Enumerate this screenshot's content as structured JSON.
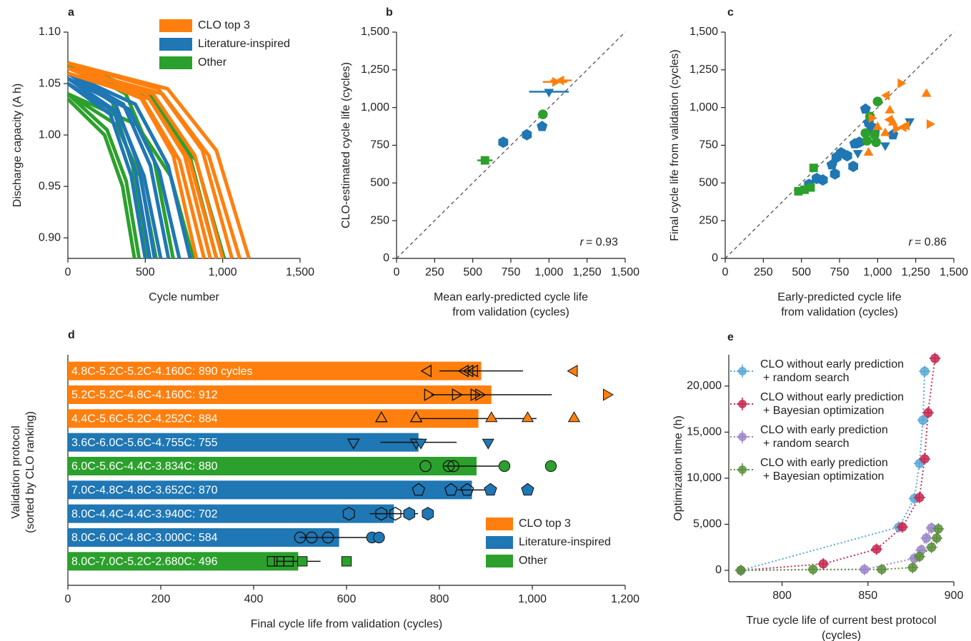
{
  "chart_data": [
    {
      "type": "line",
      "panel": "a",
      "ylabel": "Discharge capacity (A h)",
      "xlabel": "Cycle number",
      "xlim": [
        0,
        1500
      ],
      "ylim": [
        0.88,
        1.1
      ],
      "xticks": [
        0,
        500,
        {
          "value": 1000,
          "label": "1,000"
        },
        {
          "value": 1500,
          "label": "1,500"
        }
      ],
      "yticks": [
        {
          "value": 0.9,
          "label": "0.90"
        },
        0.95,
        {
          "value": 1.0,
          "label": "1.00"
        },
        1.05,
        {
          "value": 1.1,
          "label": "1.10"
        }
      ],
      "legend": "upper right",
      "series": [
        {
          "name": "CLO top 3",
          "color": "#ff7f0e",
          "lines": [
            {
              "x": [
                0,
                457,
                681,
                830
              ],
              "values": [
                1.07,
                1.04,
                0.98,
                0.88
              ]
            },
            {
              "x": [
                0,
                484,
                722,
                880
              ],
              "values": [
                1.065,
                1.035,
                0.975,
                0.88
              ]
            },
            {
              "x": [
                0,
                506,
                754,
                920
              ],
              "values": [
                1.07,
                1.04,
                0.98,
                0.88
              ]
            },
            {
              "x": [
                0,
                528,
                787,
                960
              ],
              "values": [
                1.06,
                1.035,
                0.975,
                0.88
              ]
            },
            {
              "x": [
                0,
                550,
                820,
                1000
              ],
              "values": [
                1.065,
                1.04,
                0.98,
                0.88
              ]
            },
            {
              "x": [
                0,
                583,
                869,
                1060
              ],
              "values": [
                1.07,
                1.045,
                0.985,
                0.88
              ]
            },
            {
              "x": [
                0,
                611,
                910,
                1110
              ],
              "values": [
                1.065,
                1.04,
                0.98,
                0.88
              ]
            },
            {
              "x": [
                0,
                644,
                959,
                1170
              ],
              "values": [
                1.07,
                1.045,
                0.985,
                0.88
              ]
            }
          ]
        },
        {
          "name": "Literature-inspired",
          "color": "#1f77b4",
          "lines": [
            {
              "x": [
                0,
                275,
                410,
                500
              ],
              "values": [
                1.05,
                1.02,
                0.96,
                0.88
              ]
            },
            {
              "x": [
                0,
                292,
                435,
                530
              ],
              "values": [
                1.055,
                1.025,
                0.965,
                0.88
              ]
            },
            {
              "x": [
                0,
                308,
                459,
                560
              ],
              "values": [
                1.06,
                1.03,
                0.97,
                0.88
              ]
            },
            {
              "x": [
                0,
                330,
                492,
                600
              ],
              "values": [
                1.05,
                1.02,
                0.96,
                0.88
              ]
            },
            {
              "x": [
                0,
                358,
                533,
                650
              ],
              "values": [
                1.06,
                1.03,
                0.97,
                0.88
              ]
            },
            {
              "x": [
                0,
                396,
                590,
                720
              ],
              "values": [
                1.055,
                1.025,
                0.965,
                0.88
              ]
            },
            {
              "x": [
                0,
                435,
                648,
                790
              ],
              "values": [
                1.06,
                1.03,
                0.97,
                0.88
              ]
            }
          ]
        },
        {
          "name": "Other",
          "color": "#2ca02c",
          "lines": [
            {
              "x": [
                0,
                237,
                353,
                430
              ],
              "values": [
                1.035,
                1.0,
                0.95,
                0.88
              ]
            },
            {
              "x": [
                0,
                253,
                377,
                460
              ],
              "values": [
                1.04,
                1.005,
                0.955,
                0.88
              ]
            },
            {
              "x": [
                0,
                281,
                418,
                510
              ],
              "values": [
                1.07,
                1.035,
                0.97,
                0.88
              ]
            },
            {
              "x": [
                0,
                314,
                467,
                570
              ],
              "values": [
                1.04,
                1.01,
                0.96,
                0.88
              ]
            },
            {
              "x": [
                0,
                374,
                558,
                680
              ],
              "values": [
                1.07,
                1.04,
                0.975,
                0.88
              ]
            },
            {
              "x": [
                0,
                446,
                664,
                810
              ],
              "values": [
                1.04,
                1.01,
                0.96,
                0.88
              ]
            },
            {
              "x": [
                0,
                528,
                787,
                960
              ],
              "values": [
                1.07,
                1.04,
                0.98,
                0.88
              ]
            },
            {
              "x": [
                0,
                556,
                828,
                1010
              ],
              "values": [
                1.065,
                1.035,
                0.975,
                0.88
              ]
            }
          ]
        }
      ]
    },
    {
      "type": "scatter",
      "panel": "b",
      "ylabel": "CLO-estimated cycle life (cycles)",
      "xlabel": [
        "Mean early-predicted cycle life",
        "from validation (cycles)"
      ],
      "xlim": [
        0,
        1500
      ],
      "ylim": [
        0,
        1500
      ],
      "diagonal": true,
      "annotation": [
        "r",
        "= 0.93"
      ],
      "xticks": [
        0,
        250,
        500,
        750,
        {
          "value": 1000,
          "label": "1,000"
        },
        {
          "value": 1250,
          "label": "1,250"
        },
        {
          "value": 1500,
          "label": "1,500"
        }
      ],
      "yticks": [
        0,
        250,
        500,
        750,
        {
          "value": 1000,
          "label": "1,000"
        },
        {
          "value": 1250,
          "label": "1,250"
        },
        {
          "value": 1500,
          "label": "1,500"
        }
      ],
      "series": [
        {
          "color": "#ff7f0e",
          "x": [
            1040,
            1080
          ],
          "values": [
            1170,
            1180
          ],
          "xerr": [
            80,
            70
          ],
          "markers": [
            "triangle-right",
            "triangle-left"
          ]
        },
        {
          "color": "#1f77b4",
          "x": [
            1000,
            955,
            855,
            700
          ],
          "values": [
            1105,
            875,
            820,
            770
          ],
          "xerr": [
            130,
            25,
            30,
            30
          ],
          "markers": [
            "triangle-down",
            "pentagon",
            "hexagon",
            "hexagon"
          ]
        },
        {
          "color": "#2ca02c",
          "x": [
            960,
            580
          ],
          "values": [
            955,
            650
          ],
          "xerr": [
            15,
            50
          ],
          "markers": [
            "circle",
            "square"
          ]
        }
      ]
    },
    {
      "type": "scatter",
      "panel": "c",
      "ylabel": "Final cycle life from validation (cycles)",
      "xlabel": [
        "Early-predicted cycle life",
        "from validation (cycles)"
      ],
      "xlim": [
        0,
        1500
      ],
      "ylim": [
        0,
        1500
      ],
      "diagonal": true,
      "annotation": [
        "r",
        "= 0.86"
      ],
      "xticks": [
        0,
        250,
        500,
        750,
        {
          "value": 1000,
          "label": "1,000"
        },
        {
          "value": 1250,
          "label": "1,250"
        },
        {
          "value": 1500,
          "label": "1,500"
        }
      ],
      "yticks": [
        0,
        250,
        500,
        750,
        {
          "value": 1000,
          "label": "1,000"
        },
        {
          "value": 1250,
          "label": "1,250"
        },
        {
          "value": 1500,
          "label": "1,500"
        }
      ],
      "series": [
        {
          "color": "#1f77b4",
          "x": [
            920,
            940,
            960,
            880,
            1100,
            870,
            1050,
            1210,
            980,
            700,
            730,
            760,
            800,
            840,
            600,
            640,
            550,
            720,
            850
          ],
          "values": [
            990,
            900,
            870,
            770,
            820,
            700,
            750,
            910,
            850,
            620,
            670,
            700,
            680,
            610,
            530,
            520,
            490,
            560,
            760
          ],
          "markers": [
            "pentagon",
            "pentagon",
            "hexagon",
            "hexagon",
            "pentagon",
            "triangle-down",
            "triangle-down",
            "triangle-down",
            "hexagon",
            "pentagon",
            "hexagon",
            "hexagon",
            "hexagon",
            "hexagon",
            "hexagon",
            "hexagon",
            "hexagon",
            "hexagon",
            "pentagon"
          ]
        },
        {
          "color": "#2ca02c",
          "x": [
            480,
            520,
            560,
            580,
            920,
            950,
            980,
            990,
            1000,
            930
          ],
          "values": [
            445,
            455,
            470,
            600,
            830,
            940,
            820,
            770,
            1040,
            780
          ],
          "markers": [
            "square",
            "square",
            "square",
            "square",
            "circle",
            "circle",
            "circle",
            "circle",
            "circle",
            "circle"
          ]
        },
        {
          "color": "#ff7f0e",
          "x": [
            1060,
            1080,
            1150,
            1320,
            1340,
            1170,
            1190,
            1100,
            1120,
            1050,
            1080,
            960,
            1000,
            940
          ],
          "values": [
            1080,
            980,
            1160,
            1090,
            890,
            870,
            880,
            900,
            860,
            830,
            920,
            930,
            870,
            700
          ],
          "markers": [
            "triangle-left",
            "triangle-up",
            "triangle-right",
            "triangle-up",
            "triangle-right",
            "triangle-left",
            "triangle-left",
            "triangle-up",
            "triangle-right",
            "triangle-up",
            "triangle-left",
            "triangle-right",
            "triangle-up",
            "triangle-up"
          ]
        }
      ]
    },
    {
      "type": "bar",
      "orientation": "horizontal",
      "panel": "d",
      "ylabel": [
        "Validation protocol",
        "(sorted by CLO ranking)"
      ],
      "xlabel": "Final cycle life from validation (cycles)",
      "xlim": [
        0,
        1200
      ],
      "xticks": [
        0,
        200,
        400,
        600,
        800,
        {
          "value": 1000,
          "label": "1,000"
        },
        {
          "value": 1200,
          "label": "1,200"
        }
      ],
      "categories": [
        "4.8C-5.2C-5.2C-4.160C: 890 cycles",
        "5.2C-5.2C-4.8C-4.160C: 912",
        "4.4C-5.6C-5.2C-4.252C: 884",
        "3.6C-6.0C-5.6C-4.755C: 755",
        "6.0C-5.6C-4.4C-3.834C: 880",
        "7.0C-4.8C-4.8C-3.652C: 870",
        "8.0C-4.4C-4.4C-3.940C: 702",
        "8.0C-6.0C-4.8C-3.000C: 584",
        "8.0C-7.0C-5.2C-2.680C: 496"
      ],
      "values": [
        890,
        912,
        884,
        755,
        880,
        870,
        702,
        584,
        496
      ],
      "xerr": [
        90,
        130,
        125,
        82,
        70,
        30,
        52,
        85,
        48
      ],
      "colors": [
        "#ff7f0e",
        "#ff7f0e",
        "#ff7f0e",
        "#1f77b4",
        "#2ca02c",
        "#1f77b4",
        "#1f77b4",
        "#1f77b4",
        "#2ca02c"
      ],
      "markers": [
        "triangle-left",
        "triangle-right",
        "triangle-up",
        "triangle-down",
        "circle",
        "pentagon",
        "hexagon",
        "circle",
        "square"
      ],
      "early_predicted": [
        [
          775,
          855,
          865,
          875
        ],
        [
          775,
          835,
          875,
          885
        ],
        [
          675,
          750
        ],
        [
          615,
          750
        ],
        [
          770,
          820,
          830
        ],
        [
          755,
          825,
          860
        ],
        [
          605,
          675,
          705
        ],
        [
          500,
          525,
          560
        ],
        [
          440,
          455,
          475
        ]
      ],
      "final": [
        [
          1090
        ],
        [
          1160
        ],
        [
          912,
          990,
          1090
        ],
        [
          760,
          905
        ],
        [
          940,
          1040
        ],
        [
          910,
          990
        ],
        [
          735,
          775
        ],
        [
          655,
          670
        ],
        [
          505,
          600
        ]
      ],
      "legend": "lower right",
      "legend_entries": [
        {
          "name": "CLO top 3",
          "color": "#ff7f0e"
        },
        {
          "name": "Literature-inspired",
          "color": "#1f77b4"
        },
        {
          "name": "Other",
          "color": "#2ca02c"
        }
      ]
    },
    {
      "type": "line",
      "panel": "e",
      "ylabel": "Optimization time (h)",
      "xlabel": [
        "True cycle life of current best protocol",
        "(cycles)"
      ],
      "xlim": [
        769,
        900
      ],
      "ylim": [
        -1240,
        23400
      ],
      "line_style": "dotted",
      "legend": "upper left",
      "xticks": [
        800,
        850,
        900
      ],
      "yticks": [
        0,
        {
          "value": 5000,
          "label": "5,000"
        },
        {
          "value": 10000,
          "label": "10,000"
        },
        {
          "value": 15000,
          "label": "15,000"
        },
        {
          "value": 20000,
          "label": "20,000"
        }
      ],
      "series": [
        {
          "name": [
            "CLO without early prediction",
            "+ random search"
          ],
          "color": "#5aa9d6",
          "x": [
            776,
            868,
            877,
            880,
            882,
            883
          ],
          "values": [
            0,
            4700,
            7800,
            11600,
            16300,
            21600
          ]
        },
        {
          "name": [
            "CLO without early prediction",
            "+ Bayesian optimization"
          ],
          "color": "#c72a52",
          "x": [
            776,
            824,
            855,
            870,
            880,
            883,
            885,
            889
          ],
          "values": [
            0,
            700,
            2300,
            4700,
            7900,
            12100,
            17100,
            23000
          ]
        },
        {
          "name": [
            "CLO with early prediction",
            "+ random search"
          ],
          "color": "#9c86c8",
          "x": [
            776,
            848,
            877,
            881,
            884,
            887
          ],
          "values": [
            0,
            100,
            1300,
            2200,
            3500,
            4600
          ]
        },
        {
          "name": [
            "CLO with early prediction",
            "+ Bayesian optimization"
          ],
          "color": "#5b8f3c",
          "x": [
            776,
            818,
            858,
            876,
            880,
            887,
            890,
            891
          ],
          "values": [
            0,
            100,
            100,
            300,
            1500,
            2500,
            3500,
            4500
          ]
        }
      ]
    }
  ]
}
